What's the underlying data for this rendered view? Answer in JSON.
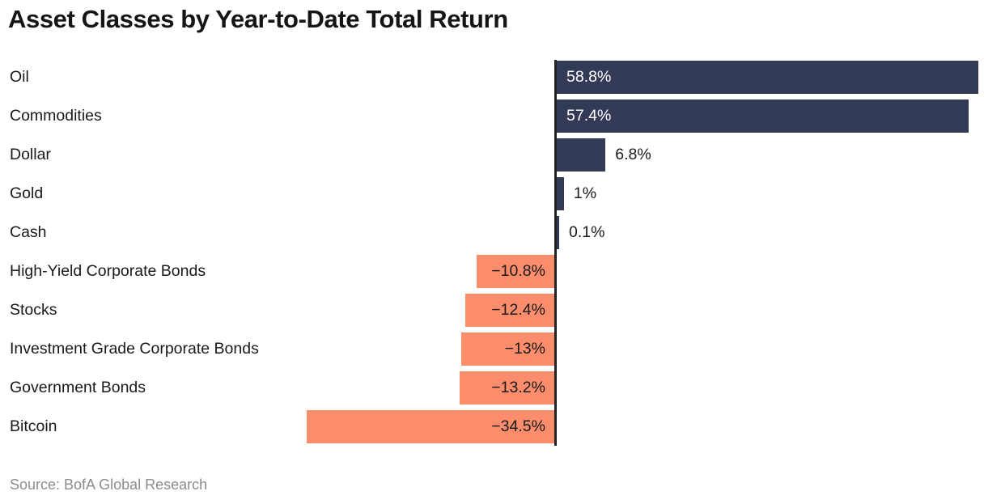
{
  "source": "Source: BofA Global Research",
  "colors": {
    "positive_bar": "#333A56",
    "negative_bar": "#FB8D6D",
    "axis_line": "#222222",
    "title_text": "#151515",
    "label_text": "#1a1a1a",
    "inside_positive_label": "#ffffff",
    "source_text": "#8c8c8c",
    "background": "#ffffff"
  },
  "chart_data": {
    "type": "bar",
    "orientation": "horizontal",
    "title": "Asset Classes by Year-to-Date Total Return",
    "xlabel": "",
    "ylabel": "",
    "value_suffix": "%",
    "xlim": [
      -40,
      62
    ],
    "grid": false,
    "legend": false,
    "zero_baseline": true,
    "categories": [
      "Oil",
      "Commodities",
      "Dollar",
      "Gold",
      "Cash",
      "High-Yield Corporate Bonds",
      "Stocks",
      "Investment Grade Corporate Bonds",
      "Government Bonds",
      "Bitcoin"
    ],
    "values": [
      58.8,
      57.4,
      6.8,
      1,
      0.1,
      -10.8,
      -12.4,
      -13,
      -13.2,
      -34.5
    ],
    "value_labels": [
      "58.8%",
      "57.4%",
      "6.8%",
      "1%",
      "0.1%",
      "−10.8%",
      "−12.4%",
      "−13%",
      "−13.2%",
      "−34.5%"
    ]
  }
}
